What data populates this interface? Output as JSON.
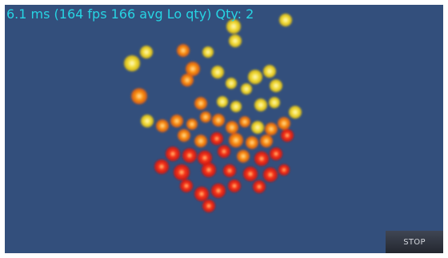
{
  "hud": {
    "stats_text": "6.1 ms (164 fps 166 avg Lo qty) Qty: 2"
  },
  "controls": {
    "stop_label": "STOP"
  },
  "colors": {
    "background": "#334f7c",
    "text": "#27d4e3",
    "particle_hot": "#f01818",
    "particle_mid": "#ff7a12",
    "particle_cool": "#f4e23a"
  }
}
